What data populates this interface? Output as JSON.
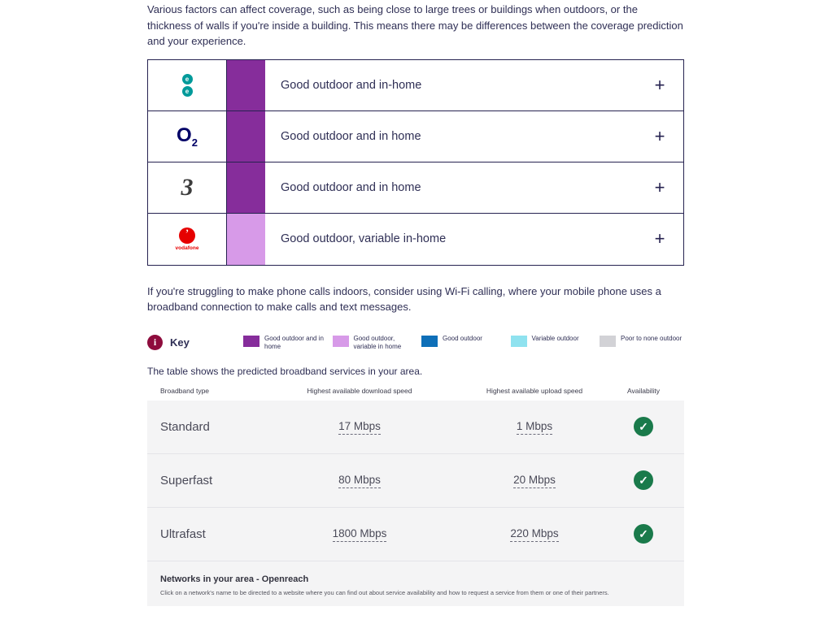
{
  "intro": {
    "text": "Various factors can affect coverage, such as being close to large trees or buildings when outdoors, or the thickness of walls if you're inside a building. This means there may be differences between the coverage prediction and your experience."
  },
  "networks": {
    "ee": {
      "name": "EE",
      "l1": "e",
      "l2": "e",
      "color": "#009a9a"
    },
    "o2": {
      "name": "O",
      "sub": "2",
      "color": "#000066"
    },
    "three": {
      "name": "3",
      "color": "#3c3c3c"
    },
    "vodafone": {
      "name": "vodafone",
      "mark": "’",
      "color": "#e60000"
    }
  },
  "coverage_table": {
    "rows": [
      {
        "network": "EE",
        "status": "Good outdoor and in-home",
        "color": "#862d9b",
        "expand": "+"
      },
      {
        "network": "O2",
        "status": "Good outdoor and in home",
        "color": "#862d9b",
        "expand": "+"
      },
      {
        "network": "Three",
        "status": "Good outdoor and in home",
        "color": "#862d9b",
        "expand": "+"
      },
      {
        "network": "Vodafone",
        "status": "Good outdoor, variable in-home",
        "color": "#d79ae8",
        "expand": "+"
      }
    ]
  },
  "wifi_note": "If you're struggling to make phone calls indoors, consider using Wi-Fi calling, where your mobile phone uses a broadband connection to make calls and text messages.",
  "key": {
    "icon": "i",
    "icon_color": "#8e0c3d",
    "label": "Key",
    "items": [
      {
        "label": "Good outdoor and in home",
        "color": "#862d9b"
      },
      {
        "label": "Good outdoor, variable in home",
        "color": "#d79ae8"
      },
      {
        "label": "Good outdoor",
        "color": "#0e6fb8"
      },
      {
        "label": "Variable outdoor",
        "color": "#8fe2ef"
      },
      {
        "label": "Poor to none outdoor",
        "color": "#d2d2d6"
      }
    ]
  },
  "broadband_intro": "The table shows the predicted broadband services in your area.",
  "broadband_table": {
    "headers": {
      "type": "Broadband type",
      "download": "Highest available download speed",
      "upload": "Highest available upload speed",
      "availability": "Availability"
    },
    "check": "✓",
    "check_color": "#1a7a4b",
    "rows": [
      {
        "type": "Standard",
        "download": "17 Mbps",
        "upload": "1 Mbps"
      },
      {
        "type": "Superfast",
        "download": "80 Mbps",
        "upload": "20 Mbps"
      },
      {
        "type": "Ultrafast",
        "download": "1800 Mbps",
        "upload": "220 Mbps"
      }
    ],
    "footer": {
      "title_prefix": "Networks in your area - ",
      "title_link": "Openreach",
      "note": "Click on a network's name to be directed to a website where you can find out about service availability and how to request a service from them or one of their partners."
    }
  }
}
